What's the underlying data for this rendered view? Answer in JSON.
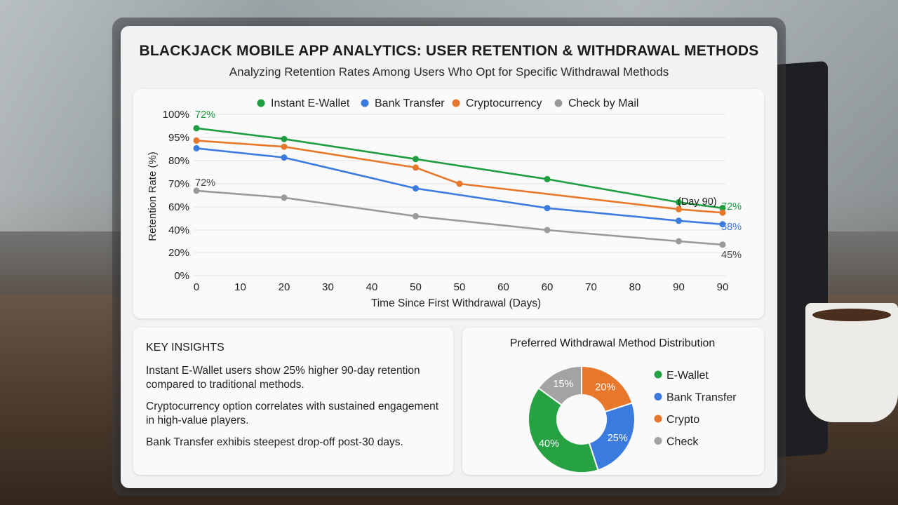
{
  "title": "BLACKJACK MOBILE APP ANALYTICS: USER RETENTION & WITHDRAWAL METHODS",
  "subtitle": "Analyzing Retention Rates Among Users Who Opt for Specific Withdrawal Methods",
  "insights": {
    "heading": "KEY INSIGHTS",
    "items": [
      "Instant E-Wallet users show 25% higher 90-day retention compared to traditional methods.",
      "Cryptocurrency option correlates with sustained engagement in high-value players.",
      "Bank Transfer exhibis steepest drop-off post-30 days."
    ]
  },
  "chart_data": [
    {
      "type": "line",
      "title": "",
      "xlabel": "Time Since First Withdrawal (Days)",
      "ylabel": "Retention Rate (%)",
      "x_ticks": [
        "0",
        "10",
        "20",
        "30",
        "40",
        "50",
        "50",
        "60",
        "60",
        "70",
        "80",
        "90",
        "90"
      ],
      "y_ticks": [
        "100%",
        "95%",
        "80%",
        "70%",
        "60%",
        "40%",
        "20%",
        "0%"
      ],
      "legend_position": "top",
      "grid": true,
      "series": [
        {
          "name": "Instant E-Wallet",
          "color": "#1e9e3e",
          "points": [
            {
              "tick": 0,
              "y": 97
            },
            {
              "tick": 2,
              "y": 94
            },
            {
              "tick": 5,
              "y": 81
            },
            {
              "tick": 8,
              "y": 72
            },
            {
              "tick": 11,
              "y": 62
            },
            {
              "tick": 12,
              "y": 59
            }
          ]
        },
        {
          "name": "Bank Transfer",
          "color": "#3b7be0",
          "points": [
            {
              "tick": 0,
              "y": 88
            },
            {
              "tick": 2,
              "y": 82
            },
            {
              "tick": 5,
              "y": 68
            },
            {
              "tick": 8,
              "y": 59
            },
            {
              "tick": 11,
              "y": 48
            },
            {
              "tick": 12,
              "y": 45
            }
          ]
        },
        {
          "name": "Cryptocurrency",
          "color": "#e7782b",
          "points": [
            {
              "tick": 0,
              "y": 93
            },
            {
              "tick": 2,
              "y": 89
            },
            {
              "tick": 5,
              "y": 77
            },
            {
              "tick": 6,
              "y": 70
            },
            {
              "tick": 11,
              "y": 58
            },
            {
              "tick": 12,
              "y": 55
            }
          ]
        },
        {
          "name": "Check by Mail",
          "color": "#9a9a9a",
          "points": [
            {
              "tick": 0,
              "y": 67
            },
            {
              "tick": 2,
              "y": 64
            },
            {
              "tick": 5,
              "y": 52
            },
            {
              "tick": 8,
              "y": 40
            },
            {
              "tick": 11,
              "y": 30
            },
            {
              "tick": 12,
              "y": 27
            }
          ]
        }
      ],
      "annotations": [
        {
          "text": "72%",
          "color": "#1e9e3e"
        },
        {
          "text": "72%",
          "color": "#444444"
        },
        {
          "text": "(Day 90)",
          "color": "#222222"
        },
        {
          "text": "72%",
          "color": "#1e9e3e"
        },
        {
          "text": "58%",
          "color": "#3b7be0"
        },
        {
          "text": "45%",
          "color": "#444444"
        }
      ]
    },
    {
      "type": "pie",
      "title": "Preferred Withdrawal Method Distribution",
      "slices": [
        {
          "name": "E-Wallet",
          "value": 40,
          "label": "40%",
          "color": "#27a243"
        },
        {
          "name": "Bank Transfer",
          "value": 25,
          "label": "25%",
          "color": "#3b7be0"
        },
        {
          "name": "Crypto",
          "value": 20,
          "label": "20%",
          "color": "#e7782b"
        },
        {
          "name": "Check",
          "value": 15,
          "label": "15%",
          "color": "#a3a3a3"
        }
      ],
      "legend_position": "right"
    }
  ]
}
